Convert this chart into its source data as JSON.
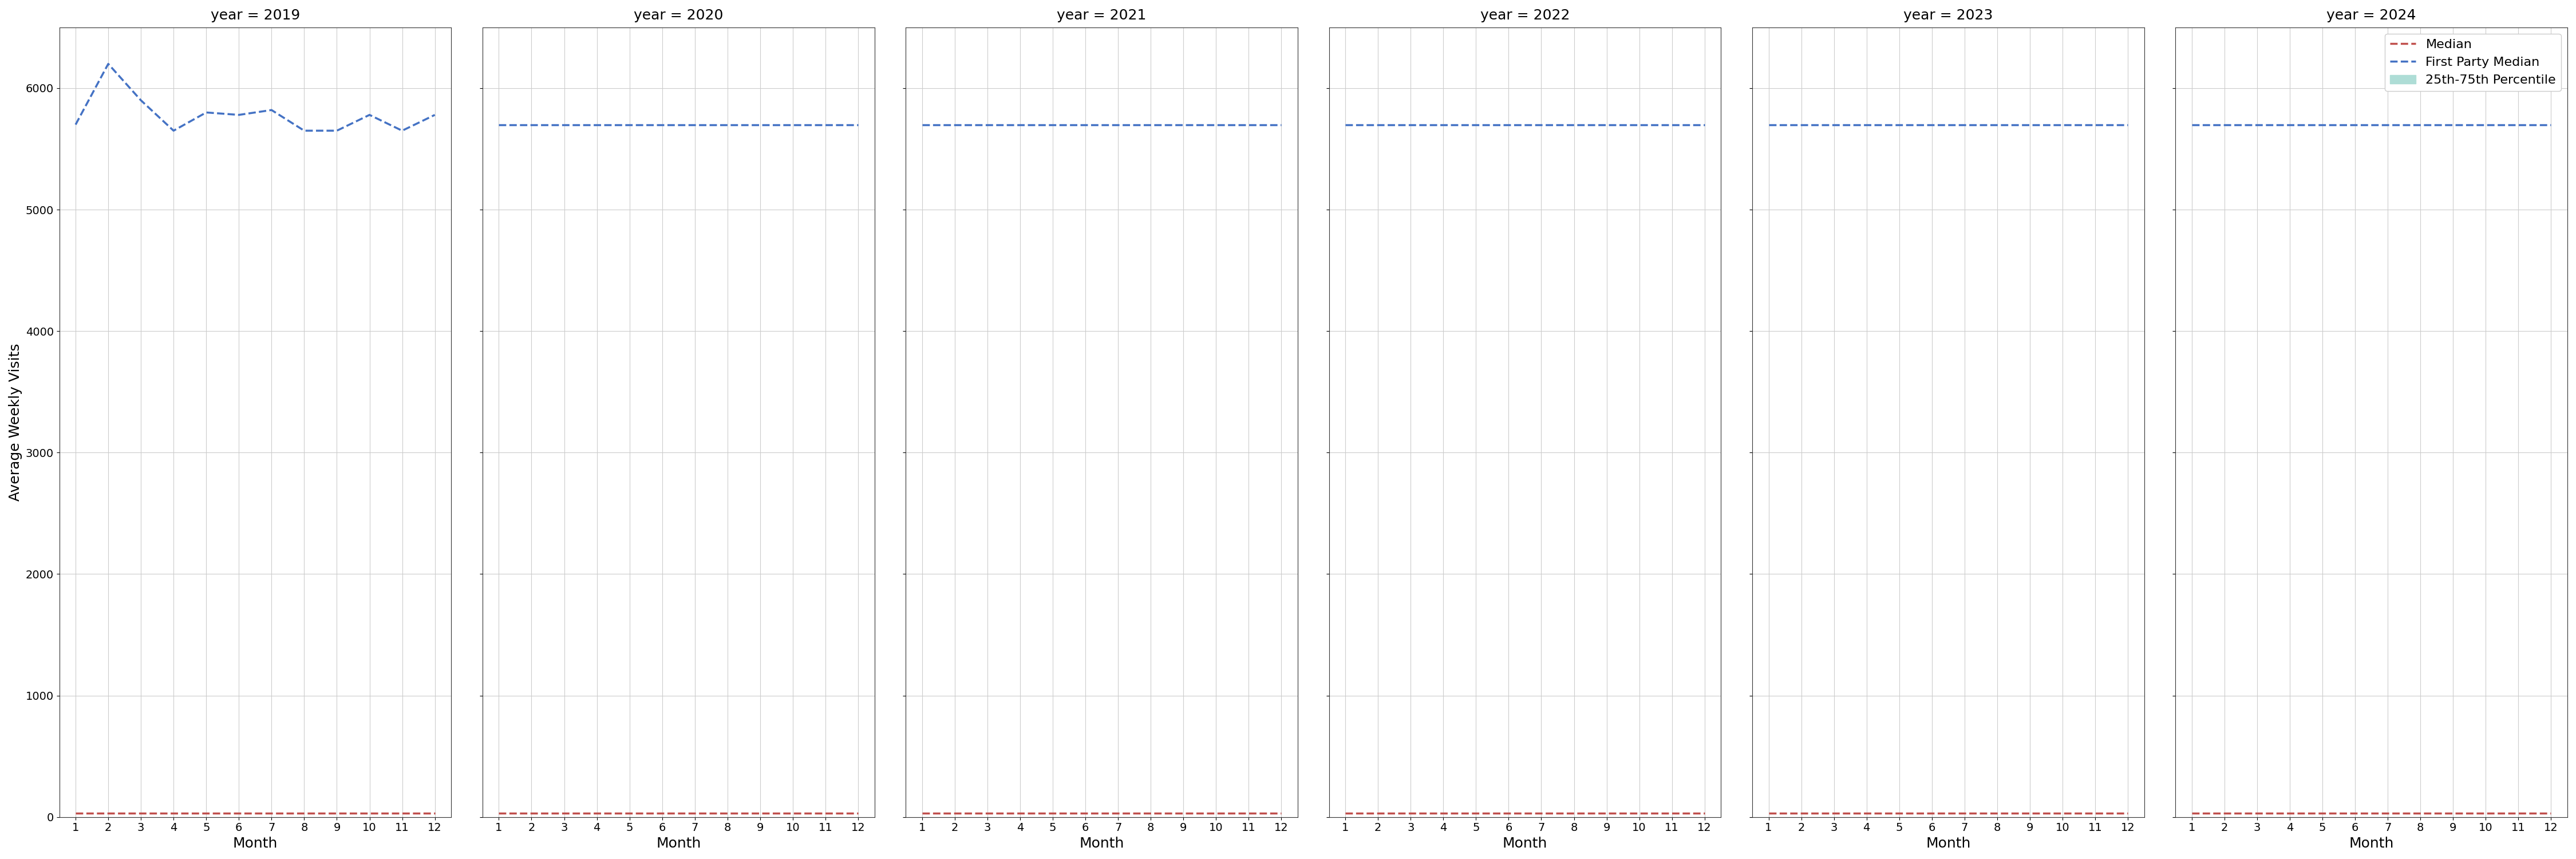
{
  "years": [
    2019,
    2020,
    2021,
    2022,
    2023,
    2024
  ],
  "months": [
    1,
    2,
    3,
    4,
    5,
    6,
    7,
    8,
    9,
    10,
    11,
    12
  ],
  "first_party_median": {
    "2019": [
      5700,
      6200,
      5900,
      5650,
      5800,
      5780,
      5820,
      5650,
      5650,
      5780,
      5650,
      5780
    ],
    "2020": [
      5700,
      5700,
      5700,
      5700,
      5700,
      5700,
      5700,
      5700,
      5700,
      5700,
      5700,
      5700
    ],
    "2021": [
      5700,
      5700,
      5700,
      5700,
      5700,
      5700,
      5700,
      5700,
      5700,
      5700,
      5700,
      5700
    ],
    "2022": [
      5700,
      5700,
      5700,
      5700,
      5700,
      5700,
      5700,
      5700,
      5700,
      5700,
      5700,
      5700
    ],
    "2023": [
      5700,
      5700,
      5700,
      5700,
      5700,
      5700,
      5700,
      5700,
      5700,
      5700,
      5700,
      5700
    ],
    "2024": [
      5700,
      5700,
      5700,
      5700,
      5700,
      5700,
      5700,
      5700,
      5700,
      5700,
      5700,
      5700
    ]
  },
  "median": {
    "2019": [
      30,
      30,
      30,
      30,
      30,
      30,
      30,
      30,
      30,
      30,
      30,
      30
    ],
    "2020": [
      30,
      30,
      30,
      30,
      30,
      30,
      30,
      30,
      30,
      30,
      30,
      30
    ],
    "2021": [
      30,
      30,
      30,
      30,
      30,
      30,
      30,
      30,
      30,
      30,
      30,
      30
    ],
    "2022": [
      30,
      30,
      30,
      30,
      30,
      30,
      30,
      30,
      30,
      30,
      30,
      30
    ],
    "2023": [
      30,
      30,
      30,
      30,
      30,
      30,
      30,
      30,
      30,
      30,
      30,
      30
    ],
    "2024": [
      30,
      30,
      30,
      30,
      30,
      30,
      30,
      30,
      30,
      30,
      30,
      30
    ]
  },
  "ylim": [
    0,
    6500
  ],
  "yticks": [
    0,
    1000,
    2000,
    3000,
    4000,
    5000,
    6000
  ],
  "xticks": [
    1,
    2,
    3,
    4,
    5,
    6,
    7,
    8,
    9,
    10,
    11,
    12
  ],
  "ylabel": "Average Weekly Visits",
  "xlabel": "Month",
  "blue_color": "#4472C4",
  "red_color": "#C0504D",
  "teal_color": "#AEDDD6",
  "legend_labels": [
    "Median",
    "First Party Median",
    "25th-75th Percentile"
  ],
  "background_color": "#FFFFFF",
  "grid_color": "#CCCCCC"
}
